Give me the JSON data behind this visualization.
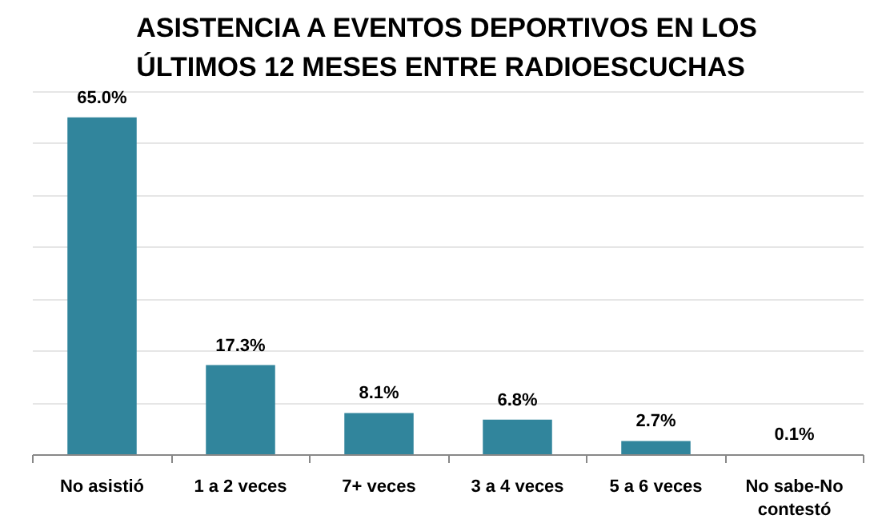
{
  "chart_data": {
    "type": "bar",
    "title": "ASISTENCIA A EVENTOS DEPORTIVOS EN LOS\nÚLTIMOS 12 MESES ENTRE RADIOESCUCHAS",
    "categories": [
      "No asistió",
      "1 a 2 veces",
      "7+ veces",
      "3 a 4 veces",
      "5 a 6 veces",
      "No sabe-No\ncontestó"
    ],
    "values": [
      65.0,
      17.3,
      8.1,
      6.8,
      2.7,
      0.1
    ],
    "value_labels": [
      "65.0%",
      "17.3%",
      "8.1%",
      "6.8%",
      "2.7%",
      "0.1%"
    ],
    "color": "#31859c",
    "grid": "y",
    "tick_labels": "x"
  }
}
